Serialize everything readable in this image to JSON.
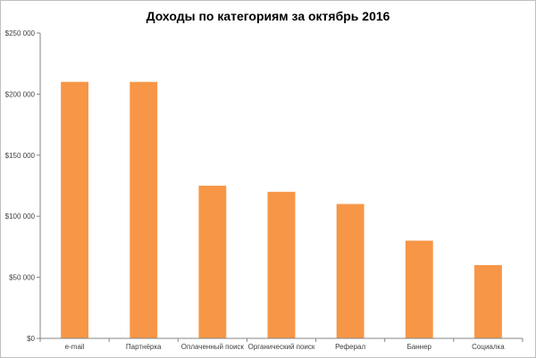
{
  "chart_data": {
    "type": "bar",
    "title": "Доходы по категориям за октябрь 2016",
    "categories": [
      "e-mail",
      "Партнёрка",
      "Оплаченный поиск",
      "Органический поиск",
      "Реферал",
      "Баннер",
      "Социалка"
    ],
    "values": [
      210000,
      210000,
      125000,
      120000,
      110000,
      80000,
      60000
    ],
    "ylim": [
      0,
      250000
    ],
    "yticks": [
      0,
      50000,
      100000,
      150000,
      200000,
      250000
    ],
    "ytick_labels": [
      "$0",
      "$50 000",
      "$100 000",
      "$150 000",
      "$200 000",
      "$250 000"
    ],
    "xlabel": "",
    "ylabel": "",
    "grid": false,
    "bar_color": "#f79646",
    "axis_color": "#868686"
  }
}
